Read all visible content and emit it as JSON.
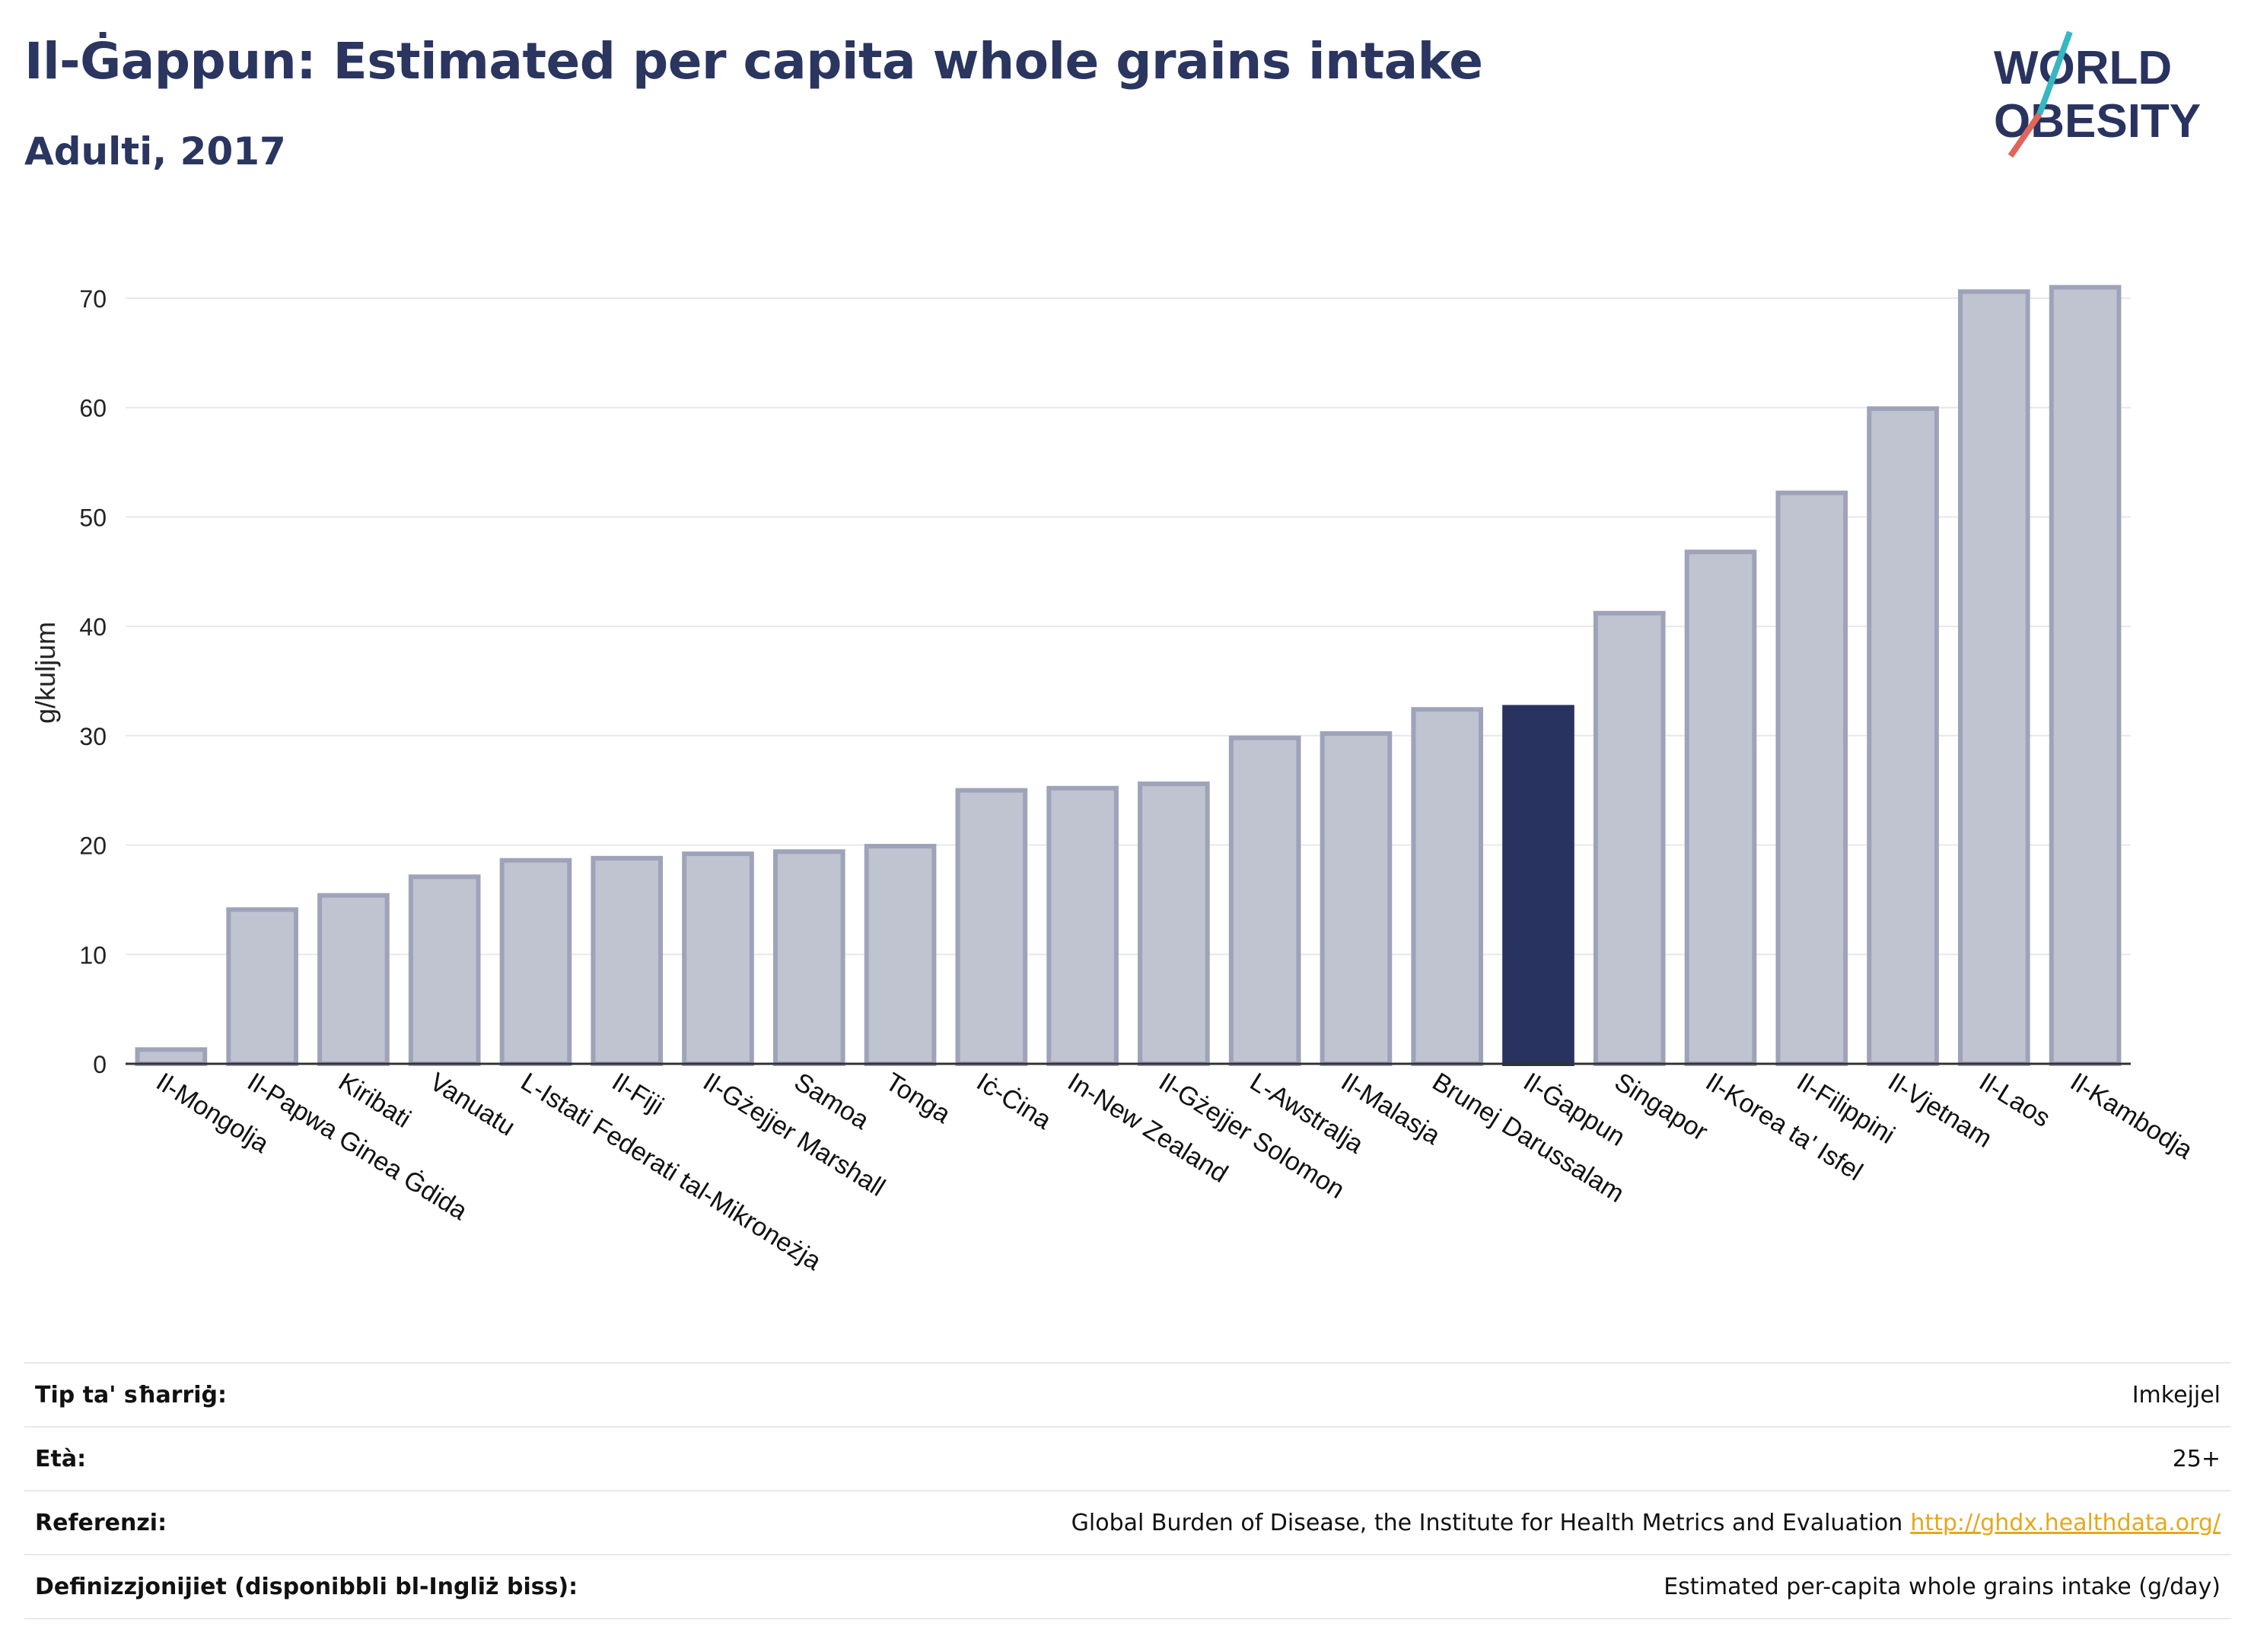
{
  "header": {
    "title": "Il-Ġappun: Estimated per capita whole grains intake",
    "subtitle": "Adulti, 2017"
  },
  "logo": {
    "line1": "WORLD",
    "line2": "OBESITY"
  },
  "colors": {
    "highlight": "#29335f",
    "bar_fill": "#c0c3d0",
    "bar_stroke": "#9ea3b9",
    "grid": "#e6e8ee",
    "logo_teal": "#36b7c2",
    "logo_red": "#e0665a"
  },
  "chart_data": {
    "type": "bar",
    "title": "Il-Ġappun: Estimated per capita whole grains intake",
    "subtitle": "Adulti, 2017",
    "xlabel": "",
    "ylabel": "g/kuljum",
    "ylim": [
      0,
      75
    ],
    "yticks": [
      0,
      10,
      20,
      30,
      40,
      50,
      60,
      70
    ],
    "grid": true,
    "highlight_category": "Il-Ġappun",
    "categories": [
      "Il-Mongolja",
      "Il-Papwa Ginea Ġdida",
      "Kiribati",
      "Vanuatu",
      "L-Istati Federati tal-Mikroneżja",
      "Il-Fiji",
      "Il-Gżejjer Marshall",
      "Samoa",
      "Tonga",
      "Iċ-Ċina",
      "In-New Zealand",
      "Il-Gżejjer Solomon",
      "L-Awstralja",
      "Il-Malasja",
      "Brunej Darussalam",
      "Il-Ġappun",
      "Singapor",
      "Il-Korea ta' Isfel",
      "Il-Filippini",
      "Il-Vjetnam",
      "Il-Laos",
      "Il-Kambodja"
    ],
    "values": [
      1.3,
      14.1,
      15.4,
      17.1,
      18.6,
      18.8,
      19.2,
      19.4,
      19.9,
      25.0,
      25.2,
      25.6,
      29.8,
      30.2,
      32.4,
      32.6,
      41.2,
      46.8,
      52.2,
      59.9,
      70.6,
      71.0
    ]
  },
  "meta": {
    "rows": [
      {
        "label": "Tip ta' sħarriġ:",
        "value": "Imkejjel"
      },
      {
        "label": "Età:",
        "value": "25+"
      },
      {
        "label": "Referenzi:",
        "value": "Global Burden of Disease, the Institute for Health Metrics and Evaluation",
        "link": "http://ghdx.healthdata.org/"
      },
      {
        "label": "Definizzjonijiet (disponibbli bl-Ingliż biss):",
        "value": "Estimated per-capita whole grains intake (g/day)"
      }
    ]
  }
}
